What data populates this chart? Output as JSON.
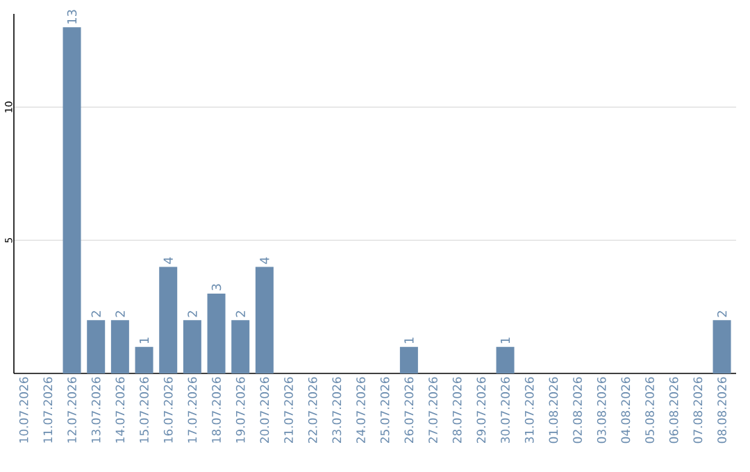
{
  "chart_data": {
    "type": "bar",
    "categories": [
      "10.07.2026",
      "11.07.2026",
      "12.07.2026",
      "13.07.2026",
      "14.07.2026",
      "15.07.2026",
      "16.07.2026",
      "17.07.2026",
      "18.07.2026",
      "19.07.2026",
      "20.07.2026",
      "21.07.2026",
      "22.07.2026",
      "23.07.2026",
      "24.07.2026",
      "25.07.2026",
      "26.07.2026",
      "27.07.2026",
      "28.07.2026",
      "29.07.2026",
      "30.07.2026",
      "31.07.2026",
      "01.08.2026",
      "02.08.2026",
      "03.08.2026",
      "04.08.2026",
      "05.08.2026",
      "06.08.2026",
      "07.08.2026",
      "08.08.2026"
    ],
    "values": [
      0,
      0,
      13,
      2,
      2,
      1,
      4,
      2,
      3,
      2,
      4,
      0,
      0,
      0,
      0,
      0,
      1,
      0,
      0,
      0,
      1,
      0,
      0,
      0,
      0,
      0,
      0,
      0,
      0,
      2
    ],
    "value_labels": [
      null,
      null,
      "13",
      "2",
      "2",
      "1",
      "4",
      "2",
      "3",
      "2",
      "4",
      null,
      null,
      null,
      null,
      null,
      "1",
      null,
      null,
      null,
      "1",
      null,
      null,
      null,
      null,
      null,
      null,
      null,
      null,
      "2"
    ],
    "color": "#6a8caf",
    "ylim": [
      0,
      13.5
    ],
    "yticks": [
      5,
      10
    ],
    "grid": "y"
  }
}
